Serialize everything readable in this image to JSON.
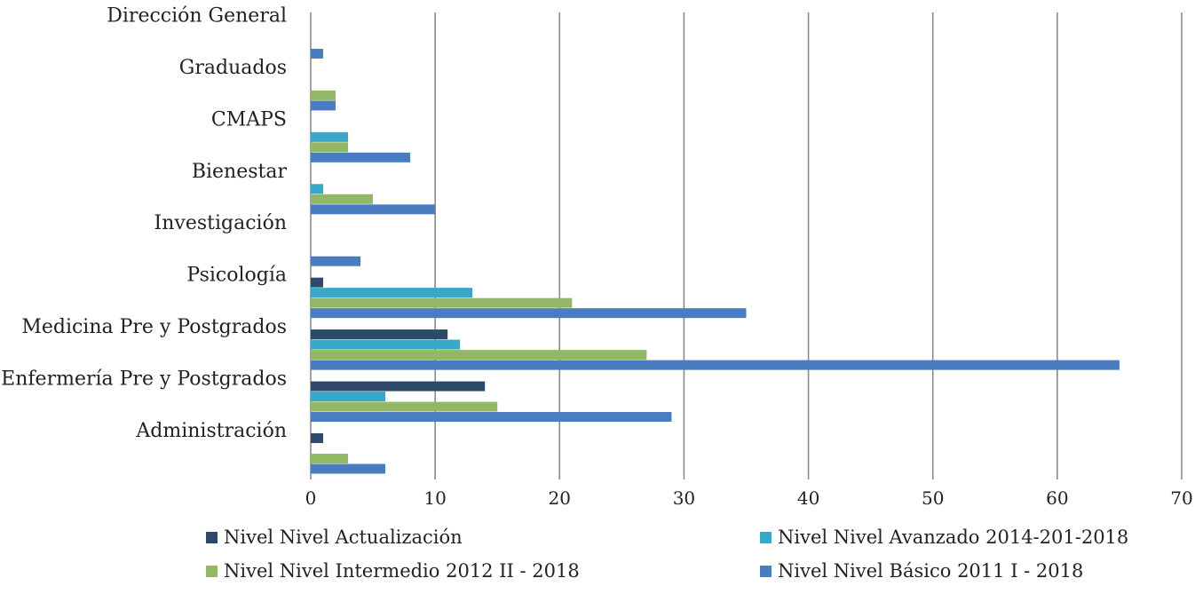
{
  "chart_data": {
    "type": "bar",
    "orientation": "horizontal",
    "categories": [
      "Dirección General",
      "Graduados",
      "CMAPS",
      "Bienestar",
      "Investigación",
      "Psicología",
      "Medicina Pre y Postgrados",
      "Enfermería Pre y Postgrados",
      "Administración"
    ],
    "series": [
      {
        "name": "Nivel Nivel Actualización",
        "color": "#2e4a6b",
        "values": [
          0,
          0,
          0,
          0,
          0,
          1,
          11,
          14,
          1
        ]
      },
      {
        "name": "Nivel Nivel Avanzado 2014-201-2018",
        "color": "#38a8c9",
        "values": [
          0,
          0,
          3,
          1,
          0,
          13,
          12,
          6,
          0
        ]
      },
      {
        "name": "Nivel Nivel Intermedio 2012 II - 2018",
        "color": "#92b865",
        "values": [
          0,
          2,
          3,
          5,
          0,
          21,
          27,
          15,
          3
        ]
      },
      {
        "name": "Nivel Nivel Básico 2011 I - 2018",
        "color": "#4a7cc0",
        "values": [
          1,
          2,
          8,
          10,
          4,
          35,
          65,
          29,
          6
        ]
      }
    ],
    "xlim": [
      0,
      70
    ],
    "xticks": [
      "0",
      "10",
      "20",
      "30",
      "40",
      "50",
      "60",
      "70"
    ],
    "grid": "vertical",
    "legend_position": "bottom",
    "legend_swatch_color": "#4a7cc0",
    "title": "",
    "xlabel": "",
    "ylabel": ""
  }
}
